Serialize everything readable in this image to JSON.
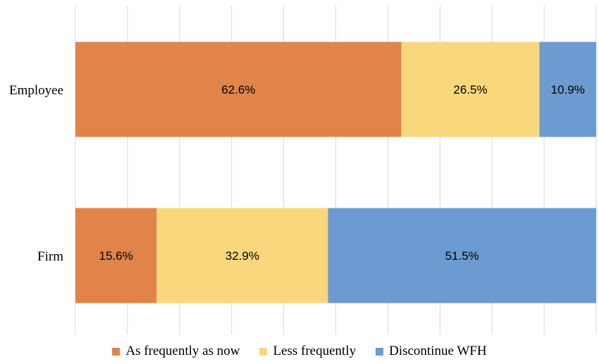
{
  "chart_data": {
    "type": "bar",
    "orientation": "horizontal",
    "stacked": true,
    "percent": true,
    "categories": [
      "Employee",
      "Firm"
    ],
    "series": [
      {
        "name": "As frequently as now",
        "values": [
          62.6,
          15.6
        ],
        "labels": [
          "62.6%",
          "15.6%"
        ],
        "color": "#E0844A"
      },
      {
        "name": "Less frequently",
        "values": [
          26.5,
          32.9
        ],
        "labels": [
          "26.5%",
          "32.9%"
        ],
        "color": "#F9D77C"
      },
      {
        "name": "Discontinue WFH",
        "values": [
          10.9,
          51.5
        ],
        "labels": [
          "10.9%",
          "51.5%"
        ],
        "color": "#6B9BD0"
      }
    ],
    "xlim": [
      0,
      100
    ],
    "grid": true,
    "legend_position": "bottom",
    "title": "",
    "xlabel": "",
    "ylabel": ""
  }
}
